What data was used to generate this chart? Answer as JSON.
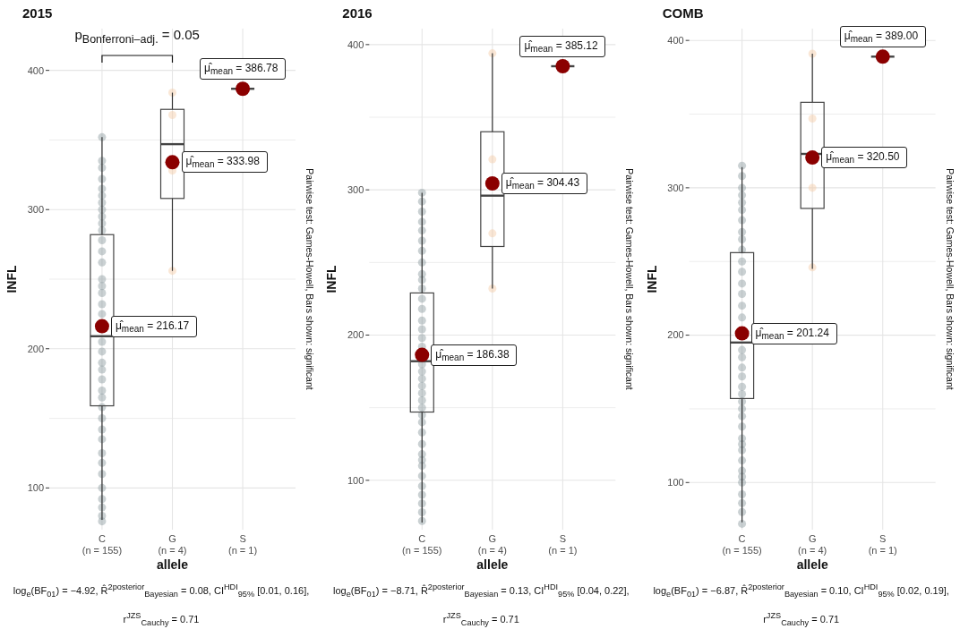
{
  "chart_data": [
    {
      "type": "box",
      "title": "2015",
      "xlabel": "allele",
      "ylabel": "INFL",
      "categories": [
        "C\n(n = 155)",
        "G\n(n = 4)",
        "S\n(n = 1)"
      ],
      "ylim": [
        70,
        430
      ],
      "yticks": [
        100,
        {
          "value": 150,
          "label": null
        },
        200,
        {
          "value": 250,
          "label": null
        },
        300,
        {
          "value": 350,
          "label": null
        },
        400
      ],
      "grid": true,
      "boxes": [
        {
          "low": 77,
          "q1": 159,
          "median": 209,
          "q3": 282,
          "high": 352,
          "mean": 216.17
        },
        {
          "low": 256,
          "q1": 308,
          "median": 347,
          "q3": 372,
          "high": 384,
          "mean": 333.98
        },
        {
          "low": 386.78,
          "q1": 386.78,
          "median": 386.78,
          "q3": 386.78,
          "high": 386.78,
          "mean": 386.78
        }
      ],
      "series": [
        {
          "type": "scatter",
          "color": "#8a9a9d",
          "x": [
            "C\n(n = 155)",
            "C\n(n = 155)",
            "C\n(n = 155)",
            "C\n(n = 155)",
            "C\n(n = 155)",
            "C\n(n = 155)",
            "C\n(n = 155)",
            "C\n(n = 155)",
            "C\n(n = 155)",
            "C\n(n = 155)",
            "C\n(n = 155)",
            "C\n(n = 155)",
            "C\n(n = 155)",
            "C\n(n = 155)",
            "C\n(n = 155)",
            "C\n(n = 155)",
            "C\n(n = 155)",
            "C\n(n = 155)",
            "C\n(n = 155)",
            "C\n(n = 155)",
            "C\n(n = 155)",
            "C\n(n = 155)",
            "C\n(n = 155)",
            "C\n(n = 155)",
            "C\n(n = 155)",
            "C\n(n = 155)",
            "C\n(n = 155)",
            "C\n(n = 155)",
            "C\n(n = 155)",
            "C\n(n = 155)",
            "C\n(n = 155)",
            "C\n(n = 155)",
            "C\n(n = 155)",
            "C\n(n = 155)",
            "C\n(n = 155)",
            "C\n(n = 155)",
            "C\n(n = 155)",
            "C\n(n = 155)"
          ],
          "values": [
            352,
            335,
            330,
            322,
            315,
            310,
            305,
            300,
            295,
            290,
            285,
            278,
            270,
            262,
            250,
            240,
            232,
            225,
            245,
            205,
            198,
            190,
            185,
            178,
            170,
            165,
            158,
            150,
            142,
            135,
            125,
            118,
            110,
            100,
            92,
            86,
            80,
            76
          ]
        },
        {
          "type": "scatter",
          "color": "#f5c9a3",
          "x": [
            "G\n(n = 4)",
            "G\n(n = 4)",
            "G\n(n = 4)",
            "G\n(n = 4)"
          ],
          "values": [
            384,
            368,
            328,
            256
          ]
        }
      ],
      "annotations": [
        "μ̂$_{mean}$ = 216.17",
        "μ̂$_{mean}$ = 333.98",
        "μ̂$_{mean}$ = 386.78",
        "p$_{Bonferroni–adj.}$ = 0.05",
        "Pairwise test: Games-Howell, Bars shown: significant",
        "log$_{e}$(BF$_{01}$) = −4.92, R̂$^{2}$$^{posterior}$$_{Bayesian}$ = 0.08, CI$^{HDI}$$_{95%}$ [0.01, 0.16], r$^{JZS}$$_{Cauchy}$ = 0.71"
      ]
    },
    {
      "type": "box",
      "title": "2016",
      "xlabel": "allele",
      "ylabel": "INFL",
      "categories": [
        "C\n(n = 155)",
        "G\n(n = 4)",
        "S\n(n = 1)"
      ],
      "ylim": [
        66,
        411
      ],
      "yticks": [
        100,
        {
          "value": 150,
          "label": null
        },
        200,
        {
          "value": 250,
          "label": null
        },
        300,
        {
          "value": 350,
          "label": null
        },
        400
      ],
      "grid": true,
      "boxes": [
        {
          "low": 71,
          "q1": 147,
          "median": 182,
          "q3": 229,
          "high": 298,
          "mean": 186.38
        },
        {
          "low": 232,
          "q1": 261,
          "median": 296,
          "q3": 340,
          "high": 394,
          "mean": 304.43
        },
        {
          "low": 385.12,
          "q1": 385.12,
          "median": 385.12,
          "q3": 385.12,
          "high": 385.12,
          "mean": 385.12
        }
      ],
      "series": [
        {
          "type": "scatter",
          "color": "#8a9a9d",
          "x": [
            "C\n(n = 155)",
            "C\n(n = 155)",
            "C\n(n = 155)",
            "C\n(n = 155)",
            "C\n(n = 155)",
            "C\n(n = 155)",
            "C\n(n = 155)",
            "C\n(n = 155)",
            "C\n(n = 155)",
            "C\n(n = 155)",
            "C\n(n = 155)",
            "C\n(n = 155)",
            "C\n(n = 155)",
            "C\n(n = 155)",
            "C\n(n = 155)",
            "C\n(n = 155)",
            "C\n(n = 155)",
            "C\n(n = 155)",
            "C\n(n = 155)",
            "C\n(n = 155)",
            "C\n(n = 155)",
            "C\n(n = 155)",
            "C\n(n = 155)",
            "C\n(n = 155)",
            "C\n(n = 155)",
            "C\n(n = 155)",
            "C\n(n = 155)",
            "C\n(n = 155)",
            "C\n(n = 155)",
            "C\n(n = 155)",
            "C\n(n = 155)",
            "C\n(n = 155)",
            "C\n(n = 155)",
            "C\n(n = 155)",
            "C\n(n = 155)",
            "C\n(n = 155)",
            "C\n(n = 155)"
          ],
          "values": [
            298,
            292,
            285,
            278,
            272,
            265,
            258,
            250,
            242,
            238,
            232,
            225,
            218,
            210,
            204,
            198,
            192,
            180,
            114,
            175,
            170,
            165,
            160,
            155,
            150,
            145,
            140,
            133,
            125,
            118,
            110,
            103,
            96,
            90,
            84,
            78,
            72
          ]
        },
        {
          "type": "scatter",
          "color": "#f5c9a3",
          "x": [
            "G\n(n = 4)",
            "G\n(n = 4)",
            "G\n(n = 4)",
            "G\n(n = 4)"
          ],
          "values": [
            394,
            321,
            270,
            232
          ]
        }
      ],
      "annotations": [
        "μ̂$_{mean}$ = 186.38",
        "μ̂$_{mean}$ = 304.43",
        "μ̂$_{mean}$ = 385.12",
        "Pairwise test: Games-Howell, Bars shown: significant",
        "log$_{e}$(BF$_{01}$) = −8.71, R̂$^{2}$$^{posterior}$$_{Bayesian}$ = 0.13, CI$^{HDI}$$_{95%}$ [0.04, 0.22], r$^{JZS}$$_{Cauchy}$ = 0.71"
      ]
    },
    {
      "type": "box",
      "title": "COMB",
      "xlabel": "allele",
      "ylabel": "INFL",
      "categories": [
        "C\n(n = 155)",
        "G\n(n = 4)",
        "S\n(n = 1)"
      ],
      "ylim": [
        68,
        408
      ],
      "yticks": [
        100,
        {
          "value": 150,
          "label": null
        },
        200,
        {
          "value": 250,
          "label": null
        },
        300,
        {
          "value": 350,
          "label": null
        },
        400
      ],
      "grid": true,
      "boxes": [
        {
          "low": 73,
          "q1": 157,
          "median": 195,
          "q3": 256,
          "high": 314,
          "mean": 201.24
        },
        {
          "low": 245,
          "q1": 286,
          "median": 323,
          "q3": 358,
          "high": 391,
          "mean": 320.5
        },
        {
          "low": 389,
          "q1": 389,
          "median": 389,
          "q3": 389,
          "high": 389,
          "mean": 389
        }
      ],
      "series": [
        {
          "type": "scatter",
          "color": "#8a9a9d",
          "x": [
            "C\n(n = 155)",
            "C\n(n = 155)",
            "C\n(n = 155)",
            "C\n(n = 155)",
            "C\n(n = 155)",
            "C\n(n = 155)",
            "C\n(n = 155)",
            "C\n(n = 155)",
            "C\n(n = 155)",
            "C\n(n = 155)",
            "C\n(n = 155)",
            "C\n(n = 155)",
            "C\n(n = 155)",
            "C\n(n = 155)",
            "C\n(n = 155)",
            "C\n(n = 155)",
            "C\n(n = 155)",
            "C\n(n = 155)",
            "C\n(n = 155)",
            "C\n(n = 155)",
            "C\n(n = 155)",
            "C\n(n = 155)",
            "C\n(n = 155)",
            "C\n(n = 155)",
            "C\n(n = 155)",
            "C\n(n = 155)",
            "C\n(n = 155)",
            "C\n(n = 155)",
            "C\n(n = 155)",
            "C\n(n = 155)",
            "C\n(n = 155)",
            "C\n(n = 155)",
            "C\n(n = 155)",
            "C\n(n = 155)",
            "C\n(n = 155)",
            "C\n(n = 155)",
            "C\n(n = 155)"
          ],
          "values": [
            315,
            308,
            300,
            295,
            290,
            285,
            278,
            270,
            265,
            258,
            250,
            243,
            235,
            228,
            220,
            212,
            126,
            104,
            190,
            185,
            178,
            172,
            165,
            160,
            155,
            150,
            145,
            138,
            130,
            122,
            115,
            108,
            100,
            92,
            86,
            80,
            72
          ]
        },
        {
          "type": "scatter",
          "color": "#f5c9a3",
          "x": [
            "G\n(n = 4)",
            "G\n(n = 4)",
            "G\n(n = 4)",
            "G\n(n = 4)"
          ],
          "values": [
            391,
            347,
            300,
            246
          ]
        }
      ],
      "annotations": [
        "μ̂$_{mean}$ = 201.24",
        "μ̂$_{mean}$ = 320.50",
        "μ̂$_{mean}$ = 389.00",
        "Pairwise test: Games-Howell, Bars shown: significant",
        "log$_{e}$(BF$_{01}$) = −6.87, R̂$^{2}$$^{posterior}$$_{Bayesian}$ = 0.10, CI$^{HDI}$$_{95%}$ [0.02, 0.19], r$^{JZS}$$_{Cauchy}$ = 0.71"
      ]
    }
  ]
}
